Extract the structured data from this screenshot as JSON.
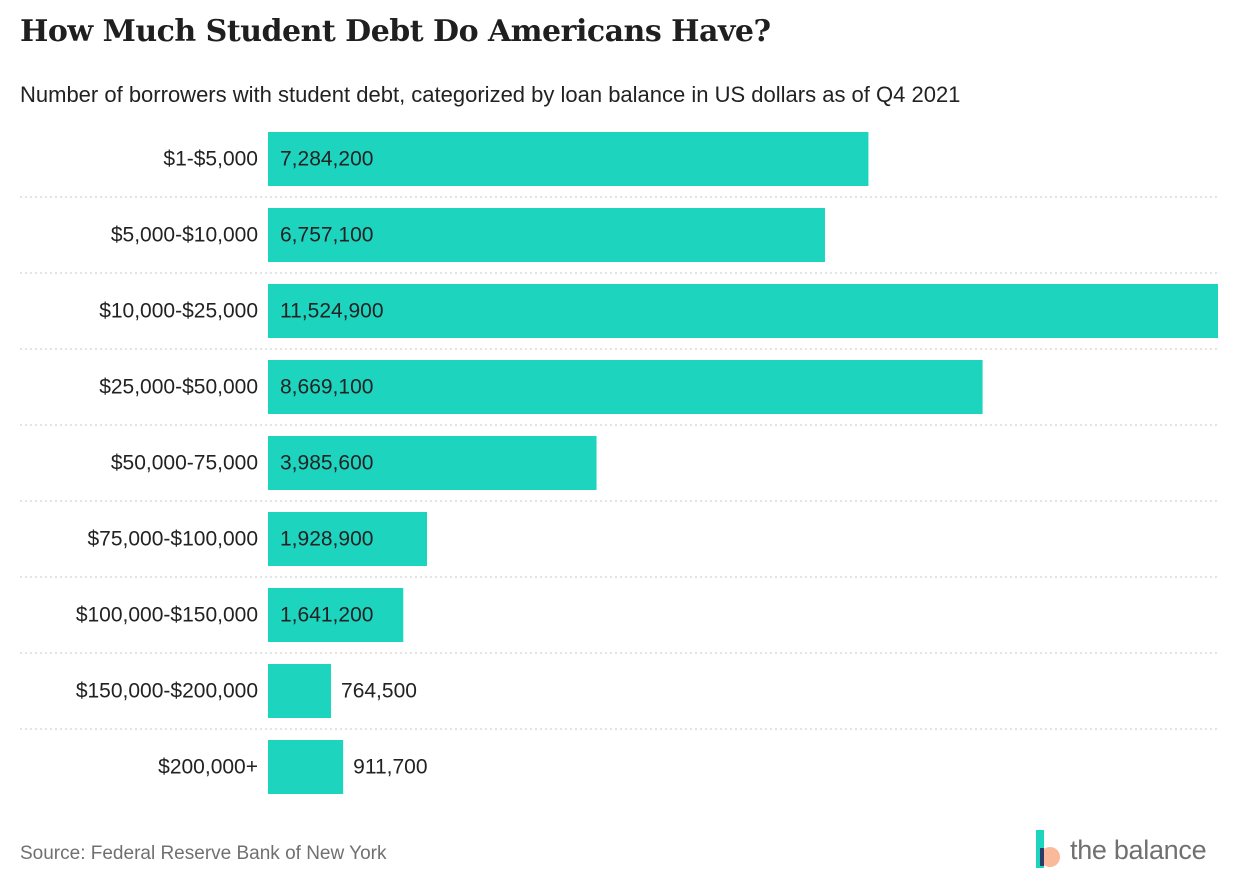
{
  "header": {
    "title": "How Much Student Debt Do Americans Have?",
    "subtitle": "Number of borrowers with student debt, categorized by loan balance in US dollars as of Q4 2021"
  },
  "footer": {
    "source": "Source: Federal Reserve Bank of New York",
    "logo_text": "the balance"
  },
  "colors": {
    "bar": "#1dd5bf",
    "grid": "#c8c8c8",
    "logo_teal": "#1dd5bf",
    "logo_peach": "#f9b99a",
    "logo_navy": "#2b3a67"
  },
  "chart_data": {
    "type": "bar",
    "orientation": "horizontal",
    "categories": [
      "$1-$5,000",
      "$5,000-$10,000",
      "$10,000-$25,000",
      "$25,000-$50,000",
      "$50,000-75,000",
      "$75,000-$100,000",
      "$100,000-$150,000",
      "$150,000-$200,000",
      "$200,000+"
    ],
    "values": [
      7284200,
      6757100,
      11524900,
      8669100,
      3985600,
      1928900,
      1641200,
      764500,
      911700
    ],
    "value_labels": [
      "7,284,200",
      "6,757,100",
      "11,524,900",
      "8,669,100",
      "3,985,600",
      "1,928,900",
      "1,641,200",
      "764,500",
      "911,700"
    ],
    "xlim": [
      0,
      11524900
    ],
    "grid": true,
    "legend": "none"
  }
}
